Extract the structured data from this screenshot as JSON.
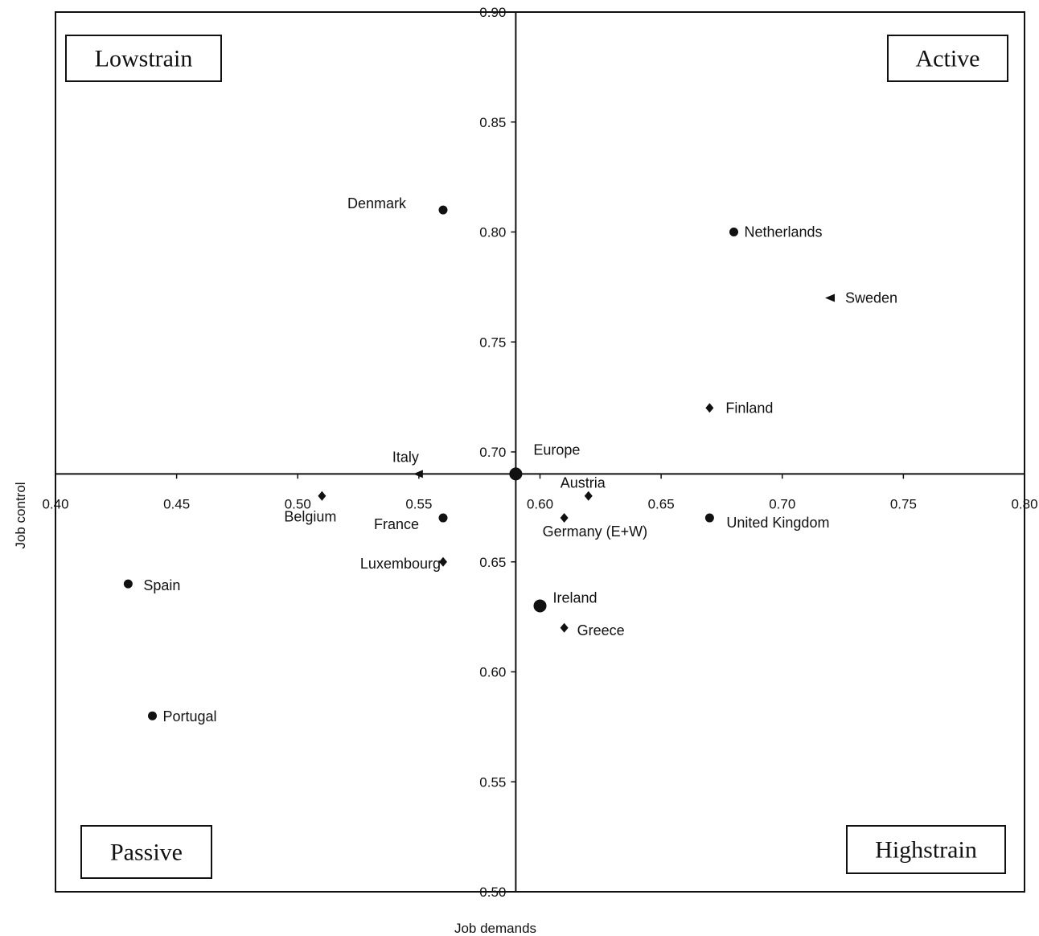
{
  "chart_data": {
    "type": "scatter",
    "title": "",
    "xlabel": "Job demands",
    "ylabel": "Job control",
    "xlim": [
      0.4,
      0.8
    ],
    "ylim": [
      0.5,
      0.9
    ],
    "x_ticks": [
      "0.40",
      "0.45",
      "0.50",
      "0.55",
      "0.60",
      "0.65",
      "0.70",
      "0.75",
      "0.80"
    ],
    "y_ticks": [
      "0.50",
      "0.55",
      "0.60",
      "0.65",
      "0.70",
      "0.75",
      "0.80",
      "0.85",
      "0.90"
    ],
    "axes_cross": {
      "x": 0.59,
      "y": 0.69
    },
    "grid": false,
    "legend": "none",
    "quadrants": [
      {
        "label": "Lowstrain",
        "position": "top-left"
      },
      {
        "label": "Active",
        "position": "top-right"
      },
      {
        "label": "Passive",
        "position": "bottom-left"
      },
      {
        "label": "Highstrain",
        "position": "bottom-right"
      }
    ],
    "points": [
      {
        "label": "Denmark",
        "x": 0.56,
        "y": 0.81,
        "marker": "circle"
      },
      {
        "label": "Netherlands",
        "x": 0.68,
        "y": 0.8,
        "marker": "circle"
      },
      {
        "label": "Sweden",
        "x": 0.72,
        "y": 0.77,
        "marker": "triangle"
      },
      {
        "label": "Finland",
        "x": 0.67,
        "y": 0.72,
        "marker": "diamond"
      },
      {
        "label": "Italy",
        "x": 0.55,
        "y": 0.69,
        "marker": "triangle"
      },
      {
        "label": "Europe",
        "x": 0.59,
        "y": 0.69,
        "marker": "large-circle"
      },
      {
        "label": "Austria",
        "x": 0.62,
        "y": 0.68,
        "marker": "diamond"
      },
      {
        "label": "Belgium",
        "x": 0.51,
        "y": 0.68,
        "marker": "diamond"
      },
      {
        "label": "France",
        "x": 0.56,
        "y": 0.67,
        "marker": "circle"
      },
      {
        "label": "Germany (E+W)",
        "x": 0.61,
        "y": 0.67,
        "marker": "diamond"
      },
      {
        "label": "United Kingdom",
        "x": 0.67,
        "y": 0.67,
        "marker": "circle"
      },
      {
        "label": "Luxembourg",
        "x": 0.56,
        "y": 0.65,
        "marker": "diamond"
      },
      {
        "label": "Spain",
        "x": 0.43,
        "y": 0.64,
        "marker": "circle"
      },
      {
        "label": "Ireland",
        "x": 0.6,
        "y": 0.63,
        "marker": "large-circle"
      },
      {
        "label": "Greece",
        "x": 0.61,
        "y": 0.62,
        "marker": "diamond"
      },
      {
        "label": "Portugal",
        "x": 0.44,
        "y": 0.58,
        "marker": "circle"
      }
    ]
  }
}
